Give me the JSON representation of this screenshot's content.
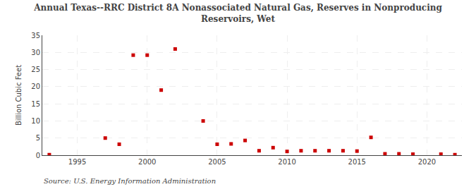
{
  "chart_data": {
    "type": "scatter",
    "title": "Annual Texas--RRC District 8A Nonassociated Natural Gas, Reserves in Nonproducing\nReservoirs, Wet",
    "ylabel": "Billion Cubic Feet",
    "annotations": [
      "Source: U.S. Energy Information Administration"
    ],
    "x": [
      1993,
      1997,
      1998,
      1999,
      2000,
      2001,
      2002,
      2004,
      2005,
      2006,
      2007,
      2008,
      2009,
      2010,
      2011,
      2012,
      2013,
      2014,
      2015,
      2016,
      2017,
      2018,
      2019,
      2021,
      2022
    ],
    "values": [
      0.15,
      5.0,
      3.2,
      29.2,
      29.2,
      19.0,
      31.0,
      10.0,
      3.2,
      3.3,
      4.3,
      1.3,
      2.2,
      1.1,
      1.3,
      1.3,
      1.3,
      1.3,
      1.2,
      5.2,
      0.4,
      0.4,
      0.3,
      0.3,
      0.15
    ],
    "color": "#cc0000",
    "marker": "square",
    "xlim": [
      1992.5,
      2022.5
    ],
    "xticks": [
      1995,
      2000,
      2005,
      2010,
      2015,
      2020
    ],
    "ylim": [
      0,
      35
    ],
    "yticks": [
      0,
      5,
      10,
      15,
      20,
      25,
      30,
      35
    ],
    "grid": true
  }
}
